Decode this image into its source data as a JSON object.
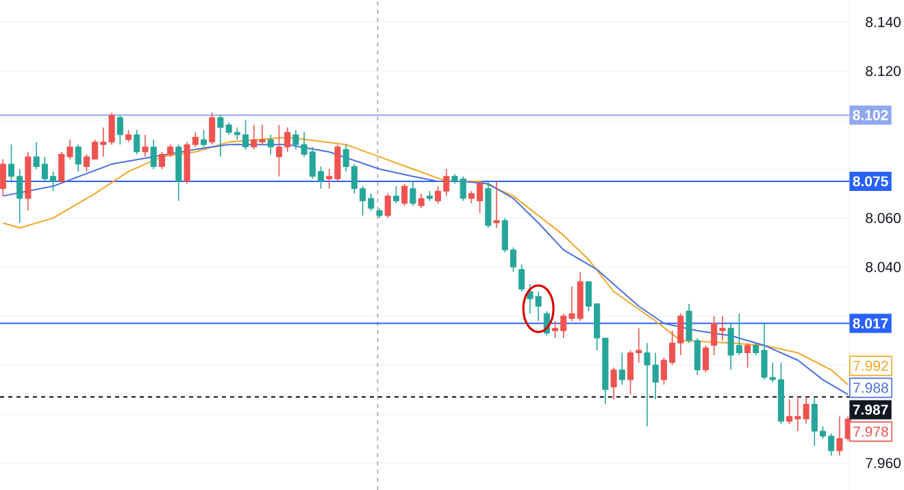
{
  "chart_data": {
    "type": "candlestick",
    "categories": [
      null,
      null,
      null,
      null,
      null,
      null,
      null,
      null,
      null,
      null,
      null,
      null,
      null,
      null,
      null,
      null,
      null,
      null,
      null,
      null,
      null,
      null,
      null,
      null,
      null,
      null,
      null,
      null,
      null,
      null,
      null,
      null,
      null,
      null,
      null,
      null,
      null,
      null,
      null,
      null,
      null,
      null,
      null,
      null,
      null,
      null,
      null,
      null,
      null,
      null,
      null,
      null,
      null,
      null,
      null,
      null,
      null,
      null,
      null,
      null,
      null,
      null,
      null,
      null,
      null,
      null,
      null,
      null,
      null,
      null,
      null,
      null,
      null,
      null,
      null,
      null,
      null,
      null,
      null,
      null,
      null,
      null,
      null,
      null,
      null,
      null,
      null,
      null,
      null,
      null,
      null,
      null,
      null,
      null,
      null,
      null,
      null,
      null,
      null,
      null,
      null,
      null
    ],
    "ohlc": [
      [
        8.072,
        8.084,
        8.069,
        8.082
      ],
      [
        8.082,
        8.09,
        8.075,
        8.077
      ],
      [
        8.077,
        8.08,
        8.058,
        8.068
      ],
      [
        8.068,
        8.087,
        8.063,
        8.085
      ],
      [
        8.085,
        8.091,
        8.08,
        8.081
      ],
      [
        8.082,
        8.085,
        8.075,
        8.076
      ],
      [
        8.077,
        8.079,
        8.071,
        8.075
      ],
      [
        8.075,
        8.087,
        8.074,
        8.086
      ],
      [
        8.085,
        8.092,
        8.084,
        8.089
      ],
      [
        8.089,
        8.09,
        8.079,
        8.082
      ],
      [
        8.081,
        8.086,
        8.079,
        8.085
      ],
      [
        8.084,
        8.092,
        8.084,
        8.091
      ],
      [
        8.09,
        8.097,
        8.085,
        8.091
      ],
      [
        8.091,
        8.103,
        8.09,
        8.102
      ],
      [
        8.101,
        8.102,
        8.09,
        8.094
      ],
      [
        8.092,
        8.096,
        8.091,
        8.094
      ],
      [
        8.094,
        8.096,
        8.086,
        8.087
      ],
      [
        8.087,
        8.094,
        8.085,
        8.089
      ],
      [
        8.089,
        8.092,
        8.08,
        8.081
      ],
      [
        8.081,
        8.087,
        8.08,
        8.086
      ],
      [
        8.086,
        8.09,
        8.085,
        8.089
      ],
      [
        8.089,
        8.09,
        8.067,
        8.075
      ],
      [
        8.075,
        8.091,
        8.074,
        8.09
      ],
      [
        8.09,
        8.095,
        8.089,
        8.093
      ],
      [
        8.092,
        8.096,
        8.089,
        8.09
      ],
      [
        8.091,
        8.103,
        8.09,
        8.101
      ],
      [
        8.101,
        8.102,
        8.085,
        8.097
      ],
      [
        8.098,
        8.099,
        8.094,
        8.095
      ],
      [
        8.095,
        8.097,
        8.092,
        8.094
      ],
      [
        8.094,
        8.1,
        8.088,
        8.089
      ],
      [
        8.089,
        8.098,
        8.088,
        8.092
      ],
      [
        8.091,
        8.098,
        8.09,
        8.092
      ],
      [
        8.092,
        8.094,
        8.086,
        8.089
      ],
      [
        8.085,
        8.098,
        8.077,
        8.089
      ],
      [
        8.089,
        8.097,
        8.087,
        8.095
      ],
      [
        8.094,
        8.096,
        8.088,
        8.09
      ],
      [
        8.09,
        8.095,
        8.085,
        8.086
      ],
      [
        8.087,
        8.089,
        8.076,
        8.077
      ],
      [
        8.079,
        8.081,
        8.072,
        8.075
      ],
      [
        8.076,
        8.08,
        8.072,
        8.077
      ],
      [
        8.076,
        8.09,
        8.075,
        8.089
      ],
      [
        8.088,
        8.09,
        8.079,
        8.081
      ],
      [
        8.081,
        8.082,
        8.07,
        8.072
      ],
      [
        8.072,
        8.073,
        8.061,
        8.067
      ],
      [
        8.068,
        8.07,
        8.063,
        8.064
      ],
      [
        8.063,
        8.064,
        8.06,
        8.061
      ],
      [
        8.061,
        8.07,
        8.06,
        8.069
      ],
      [
        8.069,
        8.073,
        8.066,
        8.067
      ],
      [
        8.066,
        8.074,
        8.065,
        8.073
      ],
      [
        8.072,
        8.075,
        8.065,
        8.066
      ],
      [
        8.065,
        8.07,
        8.064,
        8.068
      ],
      [
        8.069,
        8.071,
        8.067,
        8.068
      ],
      [
        8.067,
        8.073,
        8.066,
        8.071
      ],
      [
        8.071,
        8.08,
        8.069,
        8.077
      ],
      [
        8.077,
        8.078,
        8.074,
        8.075
      ],
      [
        8.076,
        8.077,
        8.067,
        8.068
      ],
      [
        8.068,
        8.071,
        8.066,
        8.07
      ],
      [
        8.067,
        8.075,
        8.062,
        8.074
      ],
      [
        8.072,
        8.075,
        8.056,
        8.057
      ],
      [
        8.058,
        8.075,
        8.056,
        8.059
      ],
      [
        8.059,
        8.06,
        8.046,
        8.047
      ],
      [
        8.047,
        8.048,
        8.038,
        8.04
      ],
      [
        8.039,
        8.041,
        8.03,
        8.031
      ],
      [
        8.03,
        8.033,
        8.021,
        8.027
      ],
      [
        8.028,
        8.03,
        8.018,
        8.024
      ],
      [
        8.021,
        8.022,
        8.012,
        8.013
      ],
      [
        8.014,
        8.018,
        8.011,
        8.015
      ],
      [
        8.014,
        8.021,
        8.011,
        8.02
      ],
      [
        8.019,
        8.032,
        8.018,
        8.021
      ],
      [
        8.019,
        8.038,
        8.018,
        8.034
      ],
      [
        8.034,
        8.034,
        8.022,
        8.024
      ],
      [
        8.025,
        8.025,
        8.006,
        8.011
      ],
      [
        8.011,
        8.011,
        7.984,
        7.99
      ],
      [
        7.991,
        7.999,
        7.986,
        7.998
      ],
      [
        7.998,
        8.005,
        7.992,
        7.994
      ],
      [
        7.994,
        8.006,
        7.988,
        8.005
      ],
      [
        8.005,
        8.015,
        8.001,
        8.006
      ],
      [
        8.005,
        8.009,
        7.975,
        8.0
      ],
      [
        8.0,
        8.005,
        7.986,
        7.993
      ],
      [
        7.994,
        8.003,
        7.992,
        8.002
      ],
      [
        8.001,
        8.014,
        8.0,
        8.009
      ],
      [
        8.009,
        8.021,
        8.004,
        8.02
      ],
      [
        8.022,
        8.025,
        8.009,
        8.01
      ],
      [
        8.01,
        8.011,
        7.996,
        7.998
      ],
      [
        7.998,
        8.008,
        7.997,
        8.007
      ],
      [
        8.008,
        8.02,
        8.004,
        8.017
      ],
      [
        8.014,
        8.02,
        8.01,
        8.015
      ],
      [
        8.015,
        8.017,
        7.998,
        8.004
      ],
      [
        8.008,
        8.021,
        8.004,
        8.005
      ],
      [
        8.005,
        8.009,
        7.999,
        8.008
      ],
      [
        8.008,
        8.009,
        8.004,
        8.005
      ],
      [
        8.006,
        8.017,
        7.994,
        7.995
      ],
      [
        7.995,
        8.001,
        7.993,
        7.994
      ],
      [
        7.994,
        8.001,
        7.976,
        7.977
      ],
      [
        7.977,
        7.986,
        7.976,
        7.979
      ],
      [
        7.978,
        7.987,
        7.973,
        7.979
      ],
      [
        7.978,
        7.987,
        7.976,
        7.984
      ],
      [
        7.984,
        7.987,
        7.967,
        7.973
      ],
      [
        7.973,
        7.975,
        7.97,
        7.971
      ],
      [
        7.971,
        7.972,
        7.963,
        7.965
      ],
      [
        7.965,
        7.979,
        7.963,
        7.97
      ],
      [
        7.97,
        7.979,
        7.969,
        7.978
      ]
    ],
    "series": [
      {
        "type": "line",
        "color": "#f5a623",
        "values": [
          8.058,
          null,
          8.056,
          null,
          null,
          null,
          8.06,
          null,
          null,
          null,
          null,
          8.07,
          null,
          null,
          null,
          8.079,
          null,
          null,
          null,
          8.085,
          null,
          null,
          null,
          8.087,
          null,
          null,
          null,
          8.091,
          null,
          null,
          null,
          null,
          null,
          null,
          8.093,
          null,
          null,
          null,
          null,
          null,
          null,
          8.09,
          null,
          null,
          null,
          8.085,
          null,
          null,
          null,
          8.08,
          null,
          null,
          null,
          8.075,
          null,
          null,
          null,
          8.075,
          null,
          null,
          null,
          8.069,
          null,
          null,
          8.061,
          null,
          null,
          8.053,
          null,
          null,
          8.043,
          null,
          null,
          8.03,
          null,
          null,
          null,
          null,
          8.018,
          null,
          null,
          8.01,
          null,
          null,
          null,
          null,
          null,
          8.009,
          null,
          null,
          null,
          8.008,
          null,
          null,
          null,
          8.005,
          null,
          null,
          null,
          7.998,
          null,
          7.992
        ]
      },
      {
        "type": "line",
        "color": "#4a6fe3",
        "values": [
          8.069,
          null,
          null,
          null,
          null,
          null,
          8.073,
          null,
          null,
          null,
          null,
          null,
          null,
          8.082,
          null,
          null,
          null,
          null,
          8.085,
          null,
          null,
          null,
          null,
          8.088,
          null,
          null,
          null,
          8.09,
          null,
          null,
          null,
          null,
          null,
          null,
          8.09,
          null,
          null,
          null,
          null,
          8.087,
          null,
          null,
          null,
          null,
          null,
          8.08,
          null,
          null,
          null,
          8.077,
          null,
          null,
          8.075,
          null,
          null,
          8.075,
          null,
          null,
          8.074,
          null,
          null,
          8.068,
          null,
          null,
          8.058,
          null,
          null,
          8.047,
          null,
          null,
          null,
          8.039,
          null,
          null,
          null,
          null,
          8.024,
          null,
          null,
          8.017,
          null,
          null,
          null,
          8.014,
          null,
          null,
          null,
          8.012,
          null,
          null,
          null,
          8.008,
          null,
          null,
          null,
          8.002,
          null,
          null,
          7.994,
          null,
          null,
          7.988
        ]
      }
    ],
    "ylim": [
      7.949,
      8.149
    ],
    "yticks": [
      {
        "value": 7.96,
        "label": "7.960"
      },
      {
        "value": 7.98,
        "label": null
      },
      {
        "value": 8.0,
        "label": null
      },
      {
        "value": 8.02,
        "label": null
      },
      {
        "value": 8.04,
        "label": "8.040"
      },
      {
        "value": 8.06,
        "label": "8.060"
      },
      {
        "value": 8.08,
        "label": null
      },
      {
        "value": 8.1,
        "label": null
      },
      {
        "value": 8.12,
        "label": "8.120"
      },
      {
        "value": 8.14,
        "label": "8.140"
      }
    ],
    "ref_lines": [
      {
        "axis": "y",
        "value": 8.102,
        "label": "8.102",
        "color": "#90a8f0"
      },
      {
        "axis": "y",
        "value": 8.075,
        "label": "8.075",
        "color": "#2962ff"
      },
      {
        "axis": "y",
        "value": 8.017,
        "label": "8.017",
        "color": "#2962ff"
      },
      {
        "axis": "y",
        "value": 7.987,
        "label": "7.987",
        "color": "#131722",
        "line_style": "dashed"
      }
    ],
    "annotations": [
      "7.992",
      "7.988",
      "7.978"
    ],
    "grid": "y",
    "tick_labels": "y"
  }
}
